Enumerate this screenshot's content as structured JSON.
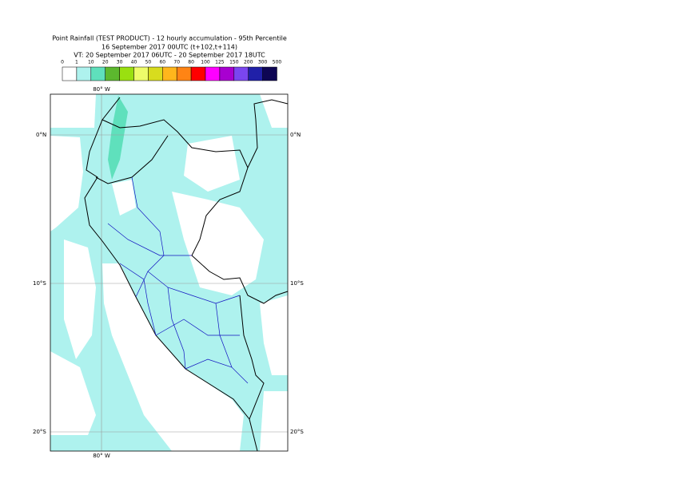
{
  "header": {
    "title": "Point Rainfall (TEST PRODUCT) - 12 hourly accumulation - 95th Percentile",
    "subtitle": "16 September 2017 00UTC (t+102,t+114)",
    "valid_time": "VT: 20 September 2017 06UTC - 20 September 2017 18UTC"
  },
  "legend": {
    "labels": [
      "0",
      "1",
      "10",
      "20",
      "30",
      "40",
      "50",
      "60",
      "70",
      "80",
      "100",
      "125",
      "150",
      "200",
      "300",
      "500"
    ],
    "colors": [
      "#ffffff",
      "#aef2ee",
      "#5fe0bc",
      "#5cb82e",
      "#9ae010",
      "#eefc6a",
      "#d8dc1e",
      "#ffb61c",
      "#ff8414",
      "#ff0000",
      "#ff00ff",
      "#a800d0",
      "#7a46f0",
      "#2020a8",
      "#0e0654"
    ]
  },
  "map": {
    "lon_labels": [
      "80° W"
    ],
    "lat_labels": [
      "0°N",
      "10°S",
      "20°S"
    ]
  }
}
